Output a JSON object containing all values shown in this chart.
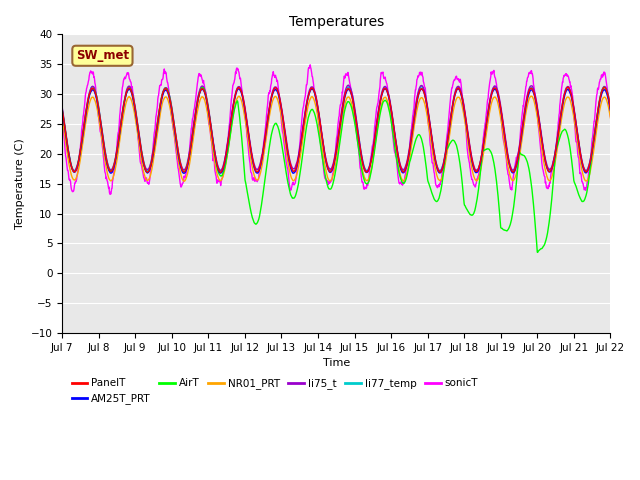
{
  "title": "Temperatures",
  "xlabel": "Time",
  "ylabel": "Temperature (C)",
  "ylim": [
    -10,
    40
  ],
  "n_days": 15,
  "x_tick_labels": [
    "Jul 7",
    "Jul 8",
    "Jul 9",
    "Jul 10",
    "Jul 11",
    "Jul 12",
    "Jul 13",
    "Jul 14",
    "Jul 15",
    "Jul 16",
    "Jul 17",
    "Jul 18",
    "Jul 19",
    "Jul 20",
    "Jul 21",
    "Jul 22"
  ],
  "series": {
    "PanelT": {
      "color": "#FF0000",
      "lw": 1.0
    },
    "AM25T_PRT": {
      "color": "#0000FF",
      "lw": 1.0
    },
    "AirT": {
      "color": "#00FF00",
      "lw": 1.0
    },
    "NR01_PRT": {
      "color": "#FFA500",
      "lw": 1.0
    },
    "li75_t": {
      "color": "#9900CC",
      "lw": 1.0
    },
    "li77_temp": {
      "color": "#00CCCC",
      "lw": 1.0
    },
    "sonicT": {
      "color": "#FF00FF",
      "lw": 1.0
    }
  },
  "legend_order": [
    "PanelT",
    "AM25T_PRT",
    "AirT",
    "NR01_PRT",
    "li75_t",
    "li77_temp",
    "sonicT"
  ],
  "annotation_text": "SW_met",
  "annotation_bbox": {
    "boxstyle": "round,pad=0.3",
    "facecolor": "#FFFF99",
    "edgecolor": "#996633",
    "linewidth": 1.5
  },
  "annotation_color": "#8B0000",
  "background_color": "#E8E8E8",
  "grid_color": "#FFFFFF",
  "fig_bg": "#FFFFFF",
  "title_fontsize": 10,
  "label_fontsize": 8,
  "tick_fontsize": 7.5,
  "legend_fontsize": 7.5
}
